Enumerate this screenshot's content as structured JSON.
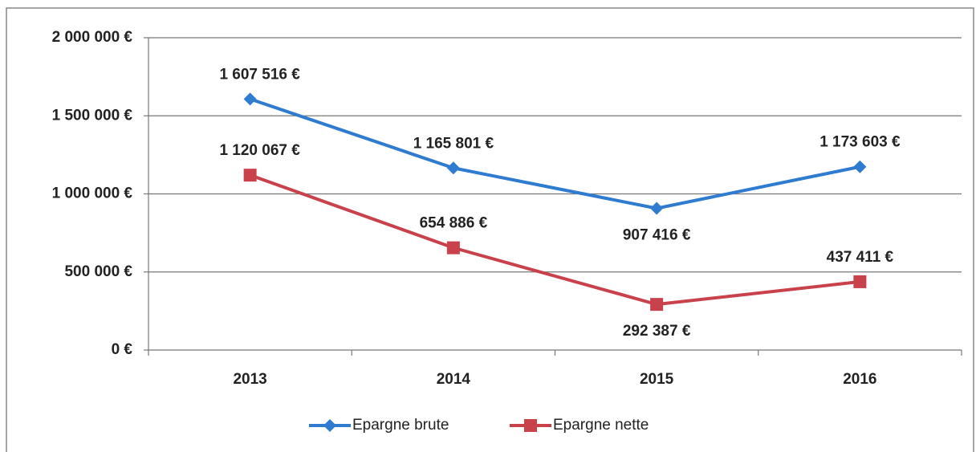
{
  "chart_data": {
    "type": "line",
    "categories": [
      "2013",
      "2014",
      "2015",
      "2016"
    ],
    "series": [
      {
        "name": "Epargne brute",
        "color": "#2e7bcf",
        "marker": "diamond",
        "values": [
          1607516,
          1165801,
          907416,
          1173603
        ],
        "value_labels": [
          "1 607 516 €",
          "1 165 801 €",
          "907 416 €",
          "1 173 603 €"
        ]
      },
      {
        "name": "Epargne nette",
        "color": "#c8414b",
        "marker": "square",
        "values": [
          1120067,
          654886,
          292387,
          437411
        ],
        "value_labels": [
          "1 120 067 €",
          "654 886 €",
          "292 387 €",
          "437 411 €"
        ]
      }
    ],
    "ylim": [
      0,
      2000000
    ],
    "yticks": [
      {
        "value": 0,
        "label": "0 €"
      },
      {
        "value": 500000,
        "label": "500 000 €"
      },
      {
        "value": 1000000,
        "label": "1 000 000 €"
      },
      {
        "value": 1500000,
        "label": "1 500 000 €"
      },
      {
        "value": 2000000,
        "label": "2 000 000 €"
      }
    ],
    "grid": true,
    "legend": "bottom"
  }
}
